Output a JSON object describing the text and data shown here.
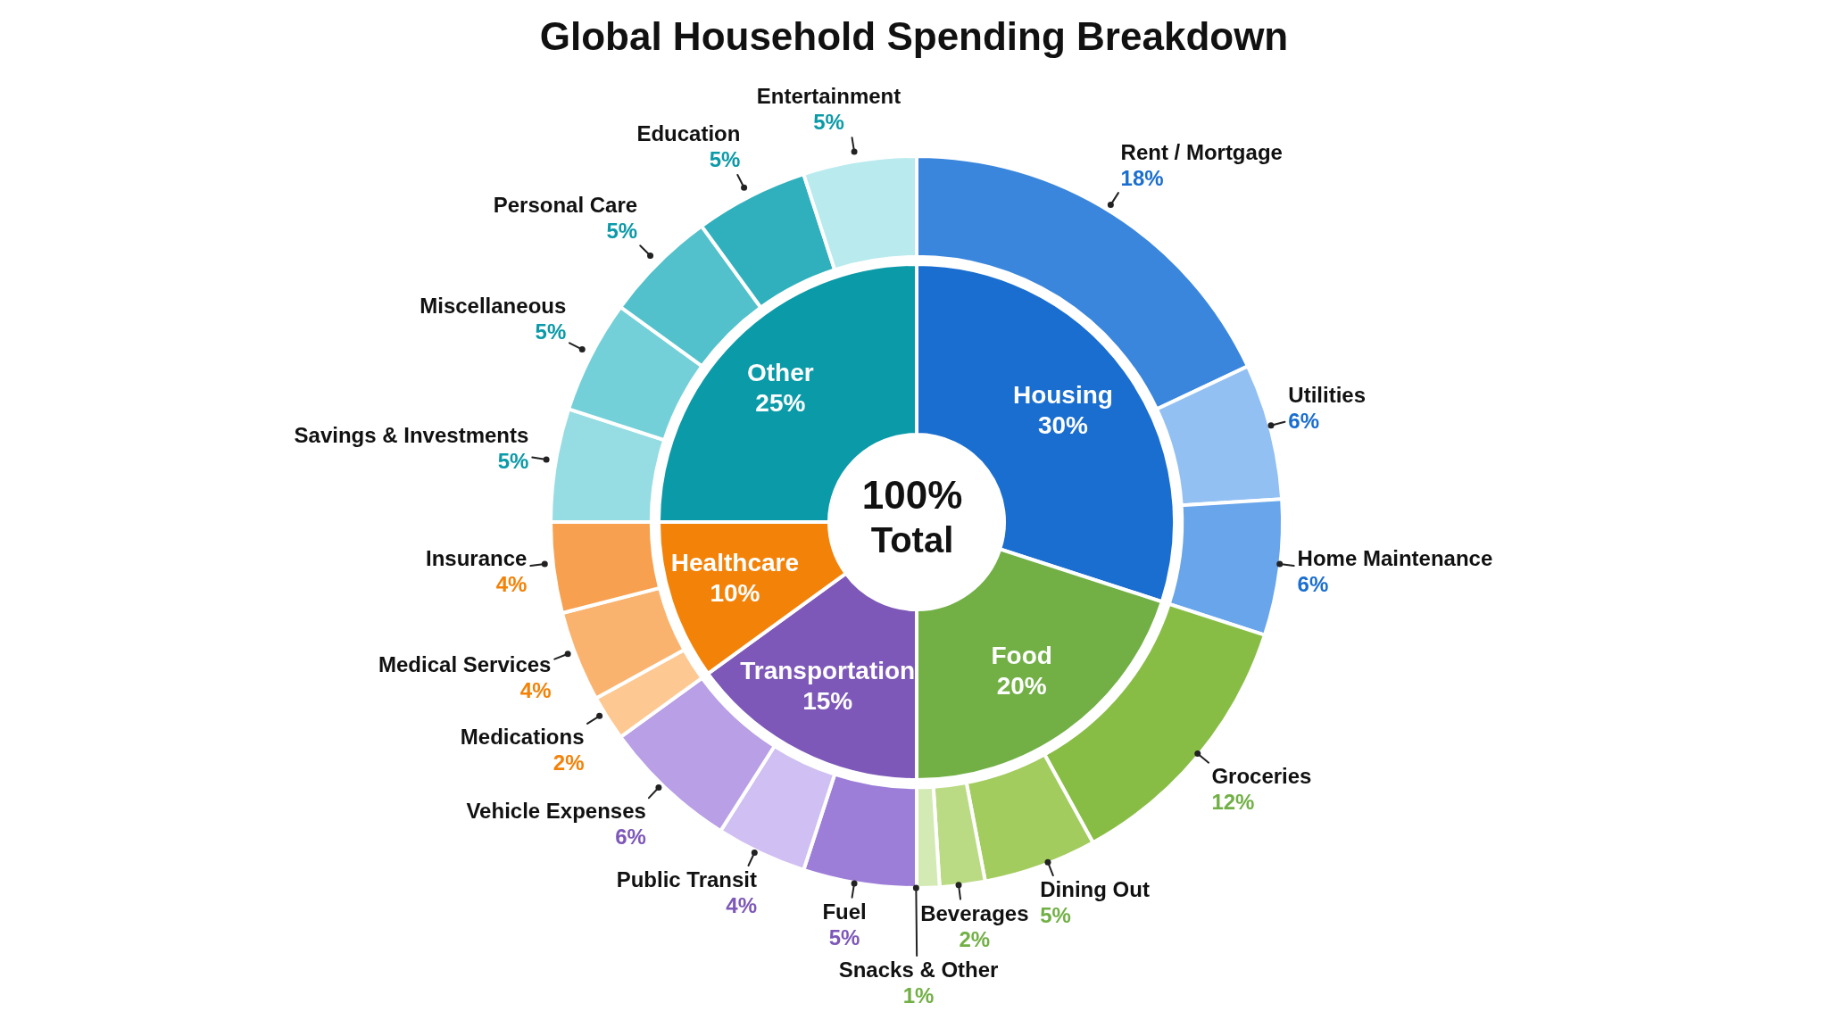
{
  "chart_data": [
    {
      "type": "donut",
      "title": "Global Household Spending Breakdown",
      "categories": [
        "Housing",
        "Food",
        "Transportation",
        "Healthcare",
        "Other"
      ],
      "values": [
        30,
        20,
        15,
        10,
        25
      ],
      "value_labels": [
        "30%",
        "20%",
        "15%",
        "10%",
        "25%"
      ],
      "colors": [
        "#1a6ecf",
        "#72b046",
        "#7d58b8",
        "#f38208",
        "#0b9aa8"
      ],
      "annotations": [
        "100%",
        "Total"
      ]
    },
    {
      "type": "donut",
      "categories": [
        "Rent / Mortgage",
        "Utilities",
        "Home Maintenance",
        "Groceries",
        "Dining Out",
        "Beverages",
        "Snacks & Other",
        "Fuel",
        "Public Transit",
        "Vehicle Expenses",
        "Medications",
        "Medical Services",
        "Insurance",
        "Savings & Investments",
        "Miscellaneous",
        "Personal Care",
        "Education",
        "Entertainment"
      ],
      "values": [
        18,
        6,
        6,
        12,
        5,
        2,
        1,
        5,
        4,
        6,
        2,
        4,
        4,
        5,
        5,
        5,
        5,
        5
      ],
      "value_labels": [
        "18%",
        "6%",
        "6%",
        "12%",
        "5%",
        "2%",
        "1%",
        "5%",
        "4%",
        "6%",
        "2%",
        "4%",
        "4%",
        "5%",
        "5%",
        "5%",
        "5%",
        "5%"
      ],
      "colors": [
        "#3a86dd",
        "#93c0f2",
        "#68a5ea",
        "#88bd45",
        "#a2cc5e",
        "#badb84",
        "#d4eab4",
        "#9c7dd8",
        "#d0bff2",
        "#b89fe6",
        "#fdc892",
        "#fab36f",
        "#f7a04f",
        "#96dde3",
        "#74d0d8",
        "#52c1cb",
        "#30b0bd",
        "#b8eaee"
      ]
    }
  ]
}
